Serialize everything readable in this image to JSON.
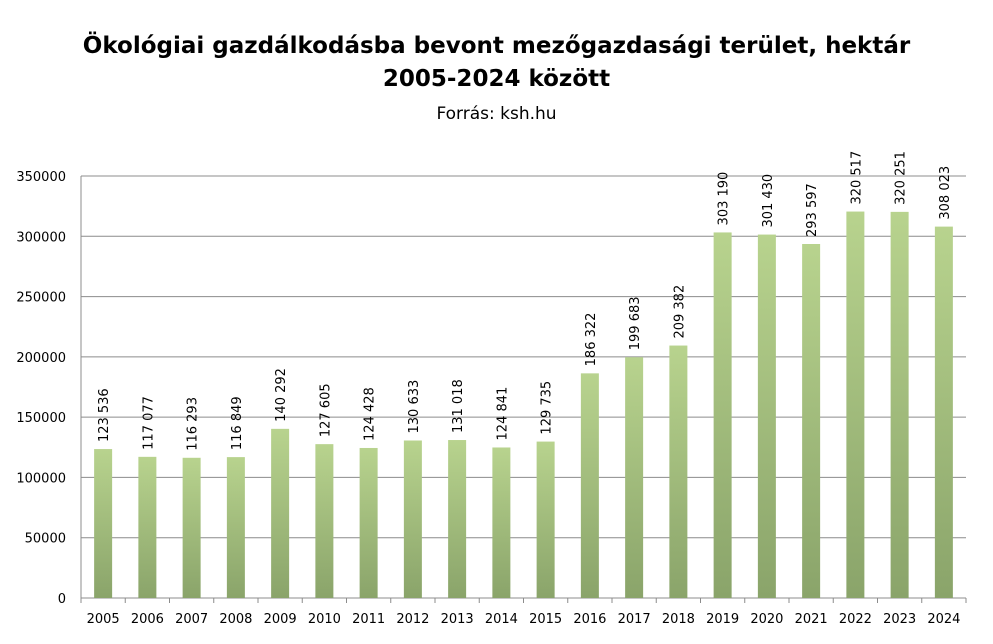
{
  "chart_data": {
    "type": "bar",
    "title": "Ökológiai gazdálkodásba bevont mezőgazdasági terület, hektár",
    "title_line2": "2005-2024 között",
    "subtitle": "Forrás: ksh.hu",
    "xlabel": "",
    "ylabel": "",
    "ylim": [
      0,
      350000
    ],
    "yticks": [
      0,
      50000,
      100000,
      150000,
      200000,
      250000,
      300000,
      350000
    ],
    "grid": true,
    "legend": "none",
    "categories": [
      "2005",
      "2006",
      "2007",
      "2008",
      "2009",
      "2010",
      "2011",
      "2012",
      "2013",
      "2014",
      "2015",
      "2016",
      "2017",
      "2018",
      "2019",
      "2020",
      "2021",
      "2022",
      "2023",
      "2024"
    ],
    "values": [
      123536,
      117077,
      116293,
      116849,
      140292,
      127605,
      124428,
      130633,
      131018,
      124841,
      129735,
      186322,
      199683,
      209382,
      303190,
      301430,
      293597,
      320517,
      320251,
      308023
    ],
    "data_labels": [
      "123 536",
      "117 077",
      "116 293",
      "116 849",
      "140 292",
      "127 605",
      "124 428",
      "130 633",
      "131 018",
      "124 841",
      "129 735",
      "186 322",
      "199 683",
      "209 382",
      "303 190",
      "301 430",
      "293 597",
      "320 517",
      "320 251",
      "308 023"
    ],
    "colors": {
      "bar_top": "#b8d38e",
      "bar_bottom": "#8aa46a",
      "grid": "#8c8c8c"
    }
  }
}
